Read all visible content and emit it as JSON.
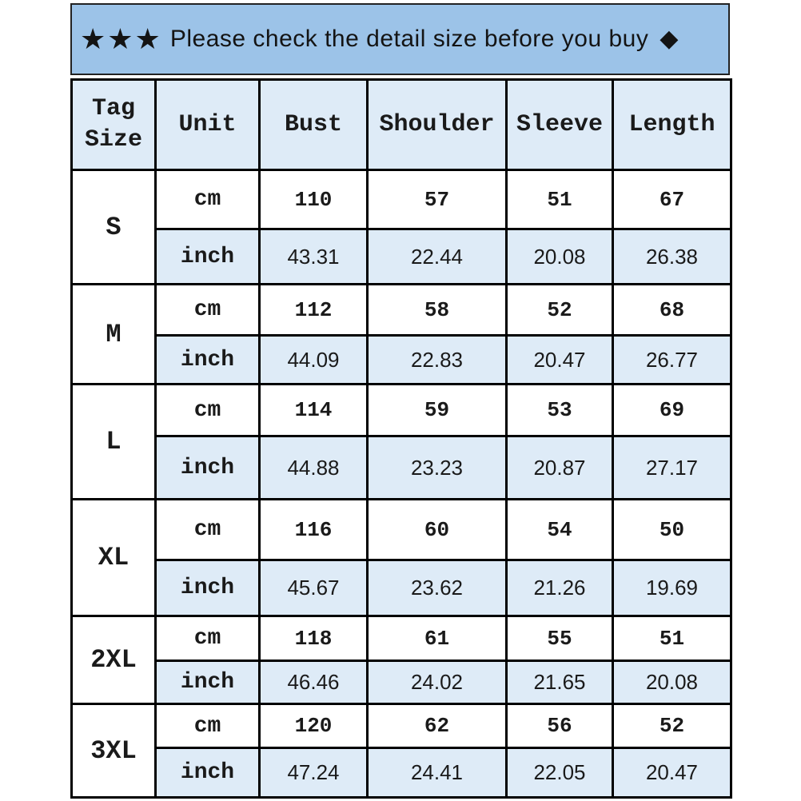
{
  "banner": {
    "stars": "★★★",
    "text": "Please check the detail size before you buy",
    "diamond": "◆"
  },
  "chart_data": {
    "type": "table",
    "title": "Please check the detail size before you buy",
    "columns": [
      "Tag Size",
      "Unit",
      "Bust",
      "Shoulder",
      "Sleeve",
      "Length"
    ],
    "unit_labels": [
      "cm",
      "inch"
    ],
    "sizes": [
      {
        "tag": "S",
        "cm": [
          "110",
          "57",
          "51",
          "67"
        ],
        "inch": [
          "43.31",
          "22.44",
          "20.08",
          "26.38"
        ]
      },
      {
        "tag": "M",
        "cm": [
          "112",
          "58",
          "52",
          "68"
        ],
        "inch": [
          "44.09",
          "22.83",
          "20.47",
          "26.77"
        ]
      },
      {
        "tag": "L",
        "cm": [
          "114",
          "59",
          "53",
          "69"
        ],
        "inch": [
          "44.88",
          "23.23",
          "20.87",
          "27.17"
        ]
      },
      {
        "tag": "XL",
        "cm": [
          "116",
          "60",
          "54",
          "50"
        ],
        "inch": [
          "45.67",
          "23.62",
          "21.26",
          "19.69"
        ]
      },
      {
        "tag": "2XL",
        "cm": [
          "118",
          "61",
          "55",
          "51"
        ],
        "inch": [
          "46.46",
          "24.02",
          "21.65",
          "20.08"
        ]
      },
      {
        "tag": "3XL",
        "cm": [
          "120",
          "62",
          "56",
          "52"
        ],
        "inch": [
          "47.24",
          "24.41",
          "22.05",
          "20.47"
        ]
      }
    ]
  },
  "colors": {
    "banner_bg": "#9CC3E8",
    "alt_row_bg": "#DEEBF7",
    "border": "#000000",
    "text": "#1A1A1A"
  }
}
